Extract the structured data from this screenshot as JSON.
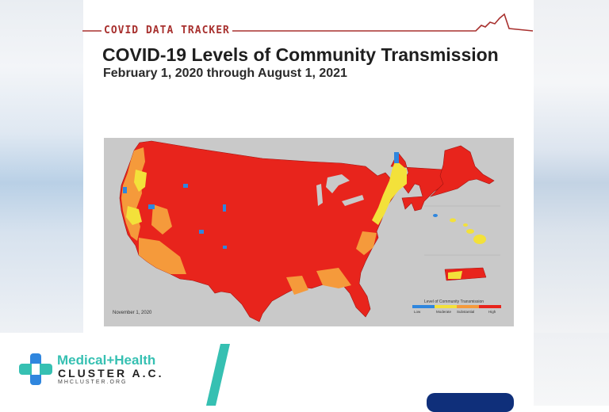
{
  "header": {
    "tracker_label": "COVID DATA TRACKER",
    "title": "COVID-19 Levels of Community Transmission",
    "subtitle": "February 1, 2020 through August 1, 2021"
  },
  "map": {
    "date_label": "November 1, 2020",
    "legend": {
      "title": "Level of Community Transmission",
      "levels": [
        {
          "label": "Low",
          "color": "#2f86de"
        },
        {
          "label": "Moderate",
          "color": "#f3e13a"
        },
        {
          "label": "Substantial",
          "color": "#f59a3b"
        },
        {
          "label": "High",
          "color": "#e8241c"
        }
      ]
    }
  },
  "brand": {
    "name": "Medical+Health",
    "sub": "CLUSTER A.C.",
    "url": "MHCLUSTER.ORG",
    "color": "#36c0b2"
  },
  "colors": {
    "accent_red": "#a8312f",
    "map_background": "#c9c9c9",
    "land_high": "#e8241c"
  }
}
